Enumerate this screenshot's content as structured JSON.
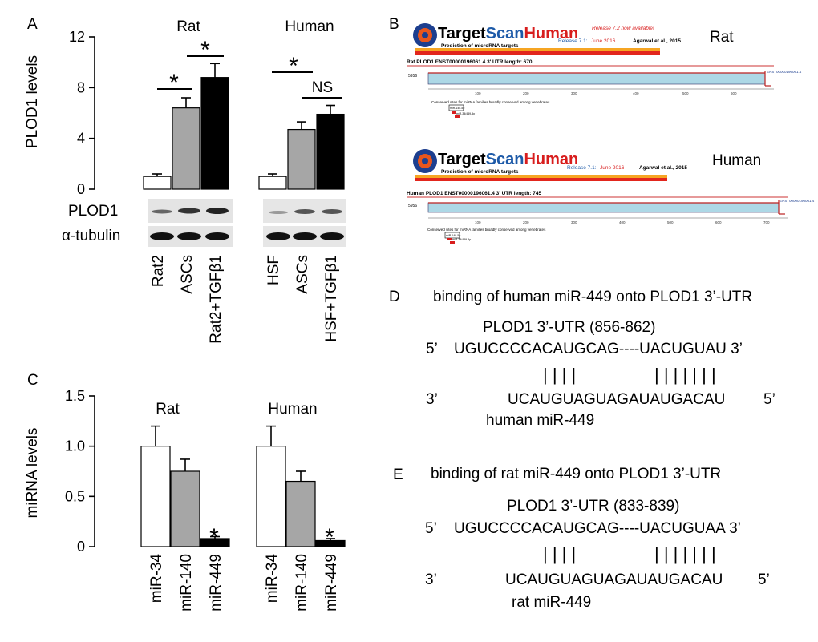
{
  "panels": {
    "a": "A",
    "b": "B",
    "c": "C",
    "d": "D",
    "e": "E"
  },
  "panel_a": {
    "ylabel": "PLOD1 levels",
    "yticks": [
      "0",
      "4",
      "8",
      "12"
    ],
    "group_rat": "Rat",
    "group_human": "Human",
    "blot_plod1": "PLOD1",
    "blot_tubulin": "α-tubulin",
    "rat_categories": [
      "Rat2",
      "ASCs",
      "Rat2+TGFβ1"
    ],
    "human_categories": [
      "HSF",
      "ASCs",
      "HSF+TGFβ1"
    ],
    "sig_star": "*",
    "sig_ns": "NS"
  },
  "panel_b": {
    "rat": {
      "logo_target": "Target",
      "logo_scan": "Scan",
      "logo_human": "Human",
      "logo_sub": "Prediction of microRNA targets",
      "release_note": "Release 7.2 now available!",
      "release": "Release 7.1:",
      "release_date": "June 2016",
      "citation": "Agarwal et al., 2015",
      "species": "Rat",
      "gene_line": "Rat PLOD1  ENST00000196061.4  3' UTR length: 670",
      "transcript_tag": "ENST00000196061.4",
      "conserved": "Conserved sites for miRNA families broadly conserved among vertebrates",
      "site1": "miR-140-5p",
      "site2": "miR-34/449-5p"
    },
    "human": {
      "logo_target": "Target",
      "logo_scan": "Scan",
      "logo_human": "Human",
      "logo_sub": "Prediction of microRNA targets",
      "release": "Release 7.1:",
      "release_date": "June 2016",
      "citation": "Agarwal et al., 2015",
      "species": "Human",
      "gene_line": "Human PLOD1  ENST00000196061.4  3' UTR length: 745",
      "transcript_tag": "ENST00000196061.4",
      "conserved": "Conserved sites for miRNA families broadly conserved among vertebrates",
      "site1": "miR-140-5p",
      "site2": "miR-34/449-5p"
    }
  },
  "panel_c": {
    "ylabel": "miRNA levels",
    "yticks": [
      "0",
      "0.5",
      "1.0",
      "1.5"
    ],
    "group_rat": "Rat",
    "group_human": "Human",
    "categories": [
      "miR-34",
      "miR-140",
      "miR-449"
    ],
    "sig_star": "*"
  },
  "panel_d": {
    "title": "binding of human miR-449 onto PLOD1 3’-UTR",
    "utr_label": "PLOD1 3’-UTR (856-862)",
    "five_prime": "5’",
    "top_seq": "UGUCCCCACAUGCAG----UACUGUAU 3’",
    "bars": "| | | |                | | | | | | |",
    "three_prime": "3’",
    "bottom_seq": "UCAUGUAGUAGAUAUGACAU",
    "bottom_end": "5’",
    "mirna_label": "human miR-449"
  },
  "panel_e": {
    "title": "binding of rat miR-449 onto PLOD1 3’-UTR",
    "utr_label": "PLOD1 3’-UTR (833-839)",
    "five_prime": "5’",
    "top_seq": "UGUCCCCACAUGCAG----UACUGUAA 3’",
    "bars": "| | | |                | | | | | | |",
    "three_prime": "3’",
    "bottom_seq": "UCAUGUAGUAGAUAUGACAU",
    "bottom_end": "5’",
    "mirna_label": "rat miR-449"
  },
  "chart_data": [
    {
      "panel": "A",
      "type": "bar",
      "ylabel": "PLOD1 levels",
      "ylim": [
        0,
        12
      ],
      "series": [
        {
          "name": "Rat",
          "categories": [
            "Rat2",
            "ASCs",
            "Rat2+TGFβ1"
          ],
          "values": [
            1.0,
            6.4,
            8.8
          ],
          "errors": [
            0.2,
            0.8,
            1.1
          ]
        },
        {
          "name": "Human",
          "categories": [
            "HSF",
            "ASCs",
            "HSF+TGFβ1"
          ],
          "values": [
            1.0,
            4.7,
            5.9
          ],
          "errors": [
            0.2,
            0.6,
            0.7
          ]
        }
      ],
      "bar_colors": [
        "#ffffff",
        "#a6a6a6",
        "#000000"
      ]
    },
    {
      "panel": "C",
      "type": "bar",
      "ylabel": "miRNA levels",
      "ylim": [
        0,
        1.5
      ],
      "series": [
        {
          "name": "Rat",
          "categories": [
            "miR-34",
            "miR-140",
            "miR-449"
          ],
          "values": [
            1.0,
            0.75,
            0.08
          ],
          "errors": [
            0.2,
            0.12,
            0.02
          ]
        },
        {
          "name": "Human",
          "categories": [
            "miR-34",
            "miR-140",
            "miR-449"
          ],
          "values": [
            1.0,
            0.65,
            0.06
          ],
          "errors": [
            0.2,
            0.1,
            0.02
          ]
        }
      ],
      "bar_colors": [
        "#ffffff",
        "#a6a6a6",
        "#000000"
      ]
    }
  ]
}
